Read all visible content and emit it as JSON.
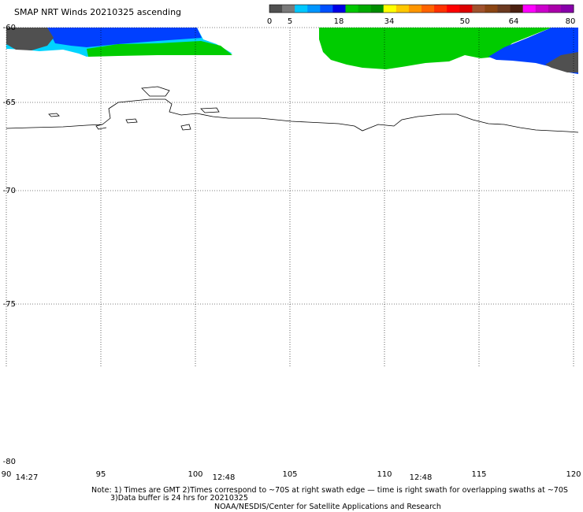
{
  "title": "SMAP NRT Winds 20210325 ascending",
  "colorbar": {
    "ticks": [
      "0",
      "5",
      "18",
      "34",
      "50",
      "64",
      "80"
    ],
    "segments": [
      {
        "color": "#505050"
      },
      {
        "color": "#7a7a7a"
      },
      {
        "color": "#00c8ff"
      },
      {
        "color": "#0096ff"
      },
      {
        "color": "#0050ff"
      },
      {
        "color": "#0000e6"
      },
      {
        "color": "#00c800"
      },
      {
        "color": "#00aa00"
      },
      {
        "color": "#008c00"
      },
      {
        "color": "#ffff00"
      },
      {
        "color": "#ffc800"
      },
      {
        "color": "#ff9600"
      },
      {
        "color": "#ff6400"
      },
      {
        "color": "#ff3200"
      },
      {
        "color": "#ff0000"
      },
      {
        "color": "#dc0000"
      },
      {
        "color": "#a0522d"
      },
      {
        "color": "#8b4513"
      },
      {
        "color": "#6b3a20"
      },
      {
        "color": "#4a2010"
      },
      {
        "color": "#ff00ff"
      },
      {
        "color": "#cc00cc"
      },
      {
        "color": "#aa00aa"
      },
      {
        "color": "#8800aa"
      }
    ]
  },
  "map": {
    "lat_labels": [
      "-60",
      "-65",
      "-70",
      "-75",
      "-80"
    ],
    "lon_labels": [
      "90",
      "95",
      "100",
      "105",
      "110",
      "115",
      "120"
    ],
    "swath_times": [
      "14:27",
      "12:48",
      "12:48"
    ]
  },
  "notes": {
    "line1": "Note: 1) Times are GMT  2)Times correspond to ~70S at right swath edge — time is right swath for overlapping swaths at ~70S",
    "line2": "3)Data buffer is 24 hrs for 20210325",
    "line3": "NOAA/NESDIS/Center for Satellite Applications and Research"
  }
}
